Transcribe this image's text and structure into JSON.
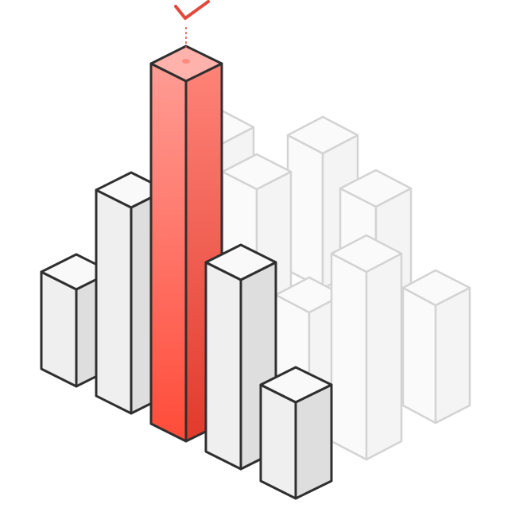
{
  "colors": {
    "background": "#ffffff",
    "highlight_top": "#ffb1ab",
    "highlight_front": "#ff7468",
    "highlight_side": "#e63b2e",
    "highlight_outline": "#2f2f2f",
    "check": "#e5483b",
    "bar_top": "#f9f9f9",
    "bar_front": "#efefef",
    "bar_side": "#dedede",
    "bar_outline": "#2f2f2f",
    "faded_fill": "#fafafa",
    "faded_outline": "#d3d3d3"
  },
  "icons": {
    "marker": "checkmark-icon"
  },
  "illustration": {
    "bar_count": 12,
    "highlighted_bar": "tallest-front-bar",
    "faded_bar_count": 6
  }
}
